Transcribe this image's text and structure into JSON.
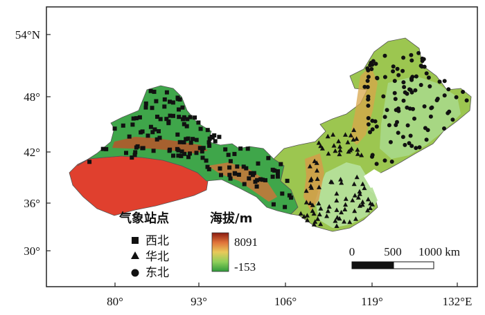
{
  "map": {
    "y_axis_labels": [
      "54°N",
      "48°",
      "42°",
      "36°",
      "30°"
    ],
    "x_axis_labels": [
      "80°",
      "93°",
      "106°",
      "119°",
      "132°E"
    ],
    "station_legend": {
      "title": "气象站点",
      "items": [
        {
          "symbol": "square",
          "label": "西北"
        },
        {
          "symbol": "triangle",
          "label": "华北"
        },
        {
          "symbol": "circle",
          "label": "东北"
        }
      ]
    },
    "elevation_legend": {
      "title": "海拔/m",
      "max_label": "8091",
      "min_label": "-153",
      "colors": [
        "#8a1a10",
        "#e0733a",
        "#e8c95a",
        "#8fcf5a",
        "#2f9a3a"
      ]
    },
    "scale_bar": {
      "labels": [
        "0",
        "500",
        "1000 km"
      ]
    },
    "colors": {
      "lowland_green": "#3fa64a",
      "upland_green": "#8fd06a",
      "mountain_brown": "#b8552a",
      "desert_red": "#e0402e",
      "plain_green": "#a8d888"
    }
  }
}
